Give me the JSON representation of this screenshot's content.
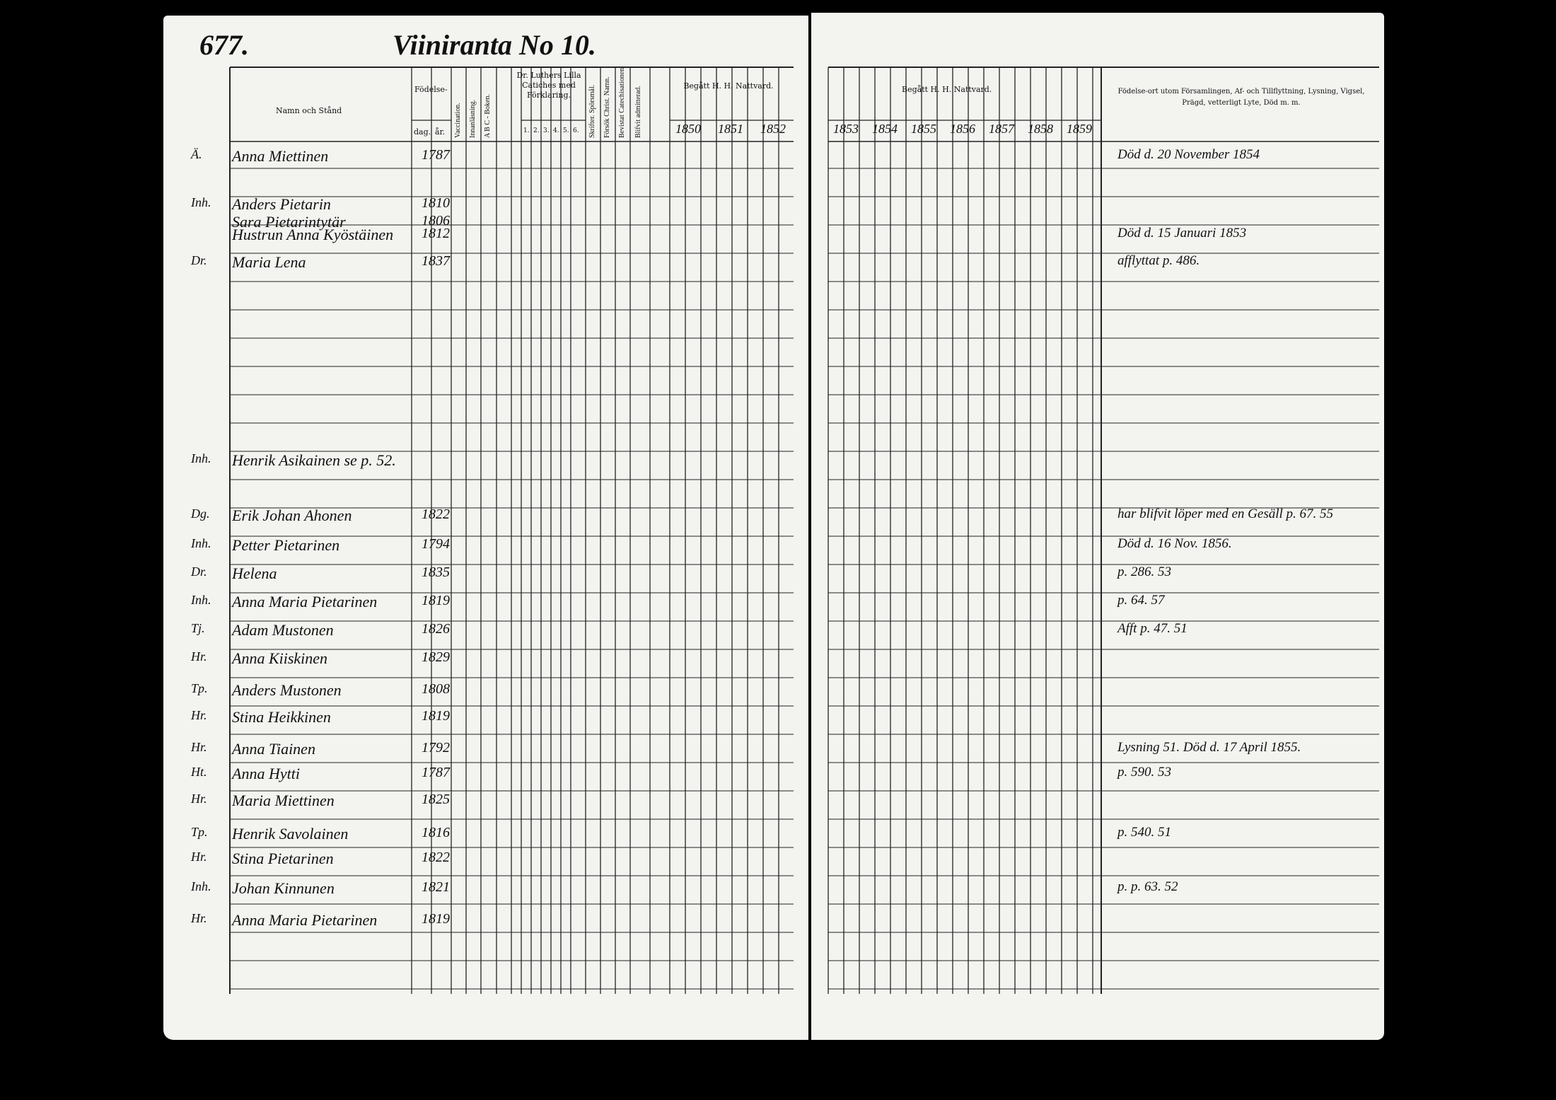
{
  "header": {
    "page_number": "677.",
    "title": "Viiniranta No 10."
  },
  "left_headers": {
    "name": "Namn och Stånd",
    "birth": "Födelse-",
    "day": "dag.",
    "year": "år.",
    "vaccination": "Vaccination.",
    "reading": "Innanläsning.",
    "abc": "A B C - Boken.",
    "luther": "Dr. Luthers Lilla Catiches med Förklaring.",
    "luther_parts": [
      "1.",
      "2.",
      "3.",
      "4.",
      "5.",
      "6."
    ],
    "scripture": "Skrifter. Spörsmål.",
    "christ": "Försök Christ. Namn.",
    "catechisation": "Bevistat Catechisationen.",
    "admitted": "Blifvit admitterad.",
    "communion": "Begått H. H. Nattvard.",
    "years": [
      "1850",
      "1851",
      "1852"
    ]
  },
  "right_headers": {
    "communion": "Begått H. H. Nattvard.",
    "years": [
      "1853",
      "1854",
      "1855",
      "1856",
      "1857",
      "1858",
      "1859"
    ],
    "remarks": "Födelse-ort utom Församlingen, Af- och Tillflyttning, Lysning, Vigsel, Prägd, vetterligt Lyte, Död m. m."
  },
  "rows": [
    {
      "status": "Ä.",
      "name": "Anna Miettinen",
      "birth_year": "1787",
      "remark": "Död d. 20 November 1854"
    },
    {
      "status": "Inh.",
      "name": "Anders Pietarin",
      "birth_year": "1810"
    },
    {
      "name": "Sara Pietarintytär",
      "birth_year": "1806"
    },
    {
      "name": "Hustrun Anna Kyöstäinen",
      "birth_year": "1812",
      "remark": "Död d. 15 Januari 1853"
    },
    {
      "status": "Dr.",
      "name": "Maria Lena",
      "birth_year": "1837",
      "remark": "afflyttat p. 486."
    },
    {
      "status": "Inh.",
      "name": "Henrik Asikainen se p. 52."
    },
    {
      "status": "Dg.",
      "name": "Erik Johan Ahonen",
      "birth_year": "1822",
      "remark": "har blifvit löper med en Gesäll p. 67. 55"
    },
    {
      "status": "Inh.",
      "name": "Petter Pietarinen",
      "birth_year": "1794",
      "remark": "Död d. 16 Nov. 1856."
    },
    {
      "status": "Dr.",
      "name": "Helena",
      "birth_year": "1835",
      "remark": "p. 286. 53"
    },
    {
      "status": "Inh.",
      "name": "Anna Maria Pietarinen",
      "birth_year": "1819",
      "remark": "p. 64. 57"
    },
    {
      "status": "Tj.",
      "name": "Adam Mustonen",
      "birth_year": "1826",
      "remark": "Afft p. 47. 51"
    },
    {
      "status": "Hr.",
      "name": "Anna Kiiskinen",
      "birth_year": "1829"
    },
    {
      "status": "Tp.",
      "name": "Anders Mustonen",
      "birth_year": "1808"
    },
    {
      "status": "Hr.",
      "name": "Stina Heikkinen",
      "birth_year": "1819"
    },
    {
      "status": "Hr.",
      "name": "Anna Tiainen",
      "birth_year": "1792",
      "remark": "Lysning 51. Död d. 17 April 1855."
    },
    {
      "status": "Ht.",
      "name": "Anna Hytti",
      "birth_year": "1787",
      "remark": "p. 590. 53"
    },
    {
      "status": "Hr.",
      "name": "Maria Miettinen",
      "birth_year": "1825"
    },
    {
      "status": "Tp.",
      "name": "Henrik Savolainen",
      "birth_year": "1816",
      "remark": "p. 540. 51"
    },
    {
      "status": "Hr.",
      "name": "Stina Pietarinen",
      "birth_year": "1822"
    },
    {
      "status": "Inh.",
      "name": "Johan Kinnunen",
      "birth_year": "1821",
      "remark": "p. p. 63. 52"
    },
    {
      "status": "Hr.",
      "name": "Anna Maria Pietarinen",
      "birth_year": "1819"
    }
  ]
}
